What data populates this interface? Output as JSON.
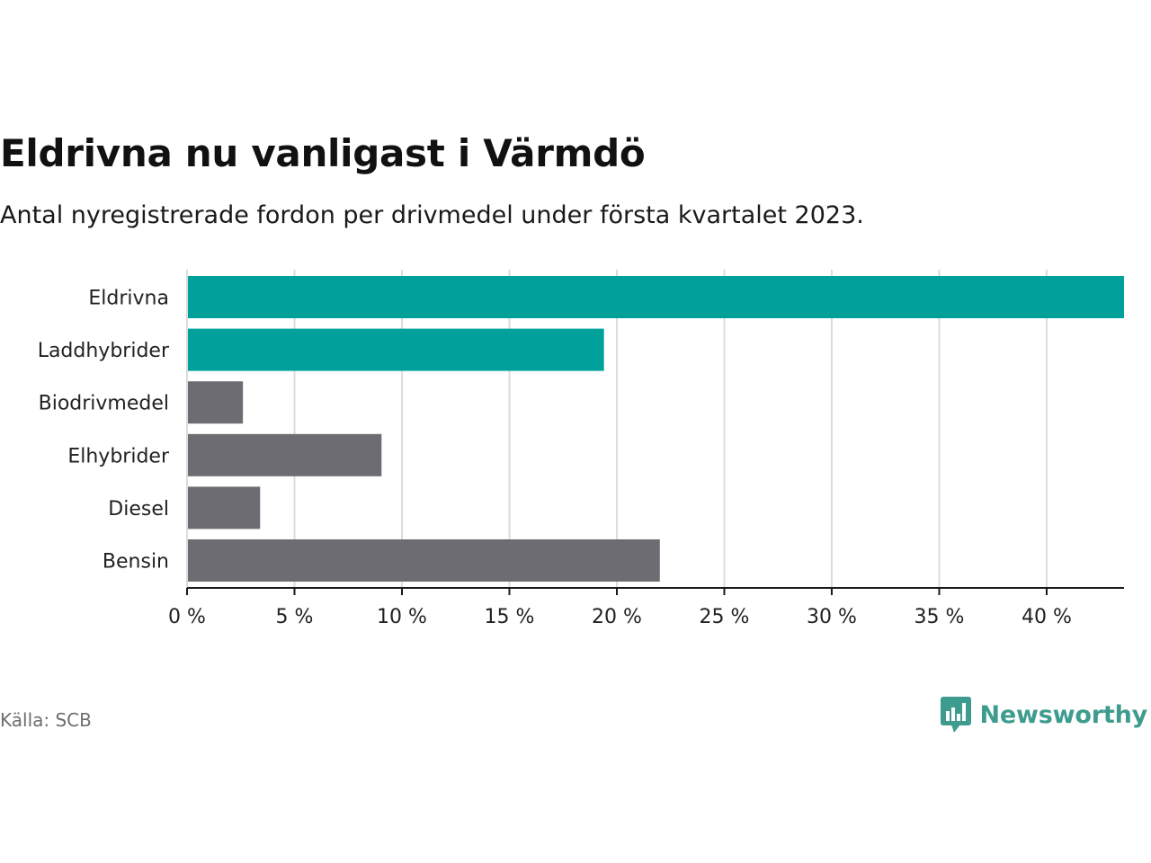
{
  "header": {
    "title": "Eldrivna nu vanligast i Värmdö",
    "subtitle": "Antal nyregistrerade fordon per drivmedel under första kvartalet 2023."
  },
  "footer": {
    "source": "Källa: SCB",
    "brand": "Newsworthy",
    "brand_icon": "newsworthy-logo-icon"
  },
  "colors": {
    "highlight": "#00a19a",
    "default": "#6d6c72",
    "grid": "#dcdcdc",
    "axis": "#1a1a1a",
    "brand": "#3e9c8f"
  },
  "chart_data": {
    "type": "bar",
    "orientation": "horizontal",
    "title": "Eldrivna nu vanligast i Värmdö",
    "subtitle": "Antal nyregistrerade fordon per drivmedel under första kvartalet 2023.",
    "xlabel": "",
    "ylabel": "",
    "unit": "%",
    "xlim": [
      0,
      43.6
    ],
    "ticks": [
      0,
      5,
      10,
      15,
      20,
      25,
      30,
      35,
      40
    ],
    "tick_labels": [
      "0 %",
      "5 %",
      "10 %",
      "15 %",
      "20 %",
      "25 %",
      "30 %",
      "35 %",
      "40 %"
    ],
    "grid": true,
    "categories": [
      "Eldrivna",
      "Laddhybrider",
      "Biodrivmedel",
      "Elhybrider",
      "Diesel",
      "Bensin"
    ],
    "values": [
      43.6,
      19.4,
      2.6,
      9.05,
      3.4,
      22.0
    ],
    "highlighted": [
      true,
      true,
      false,
      false,
      false,
      false
    ]
  }
}
